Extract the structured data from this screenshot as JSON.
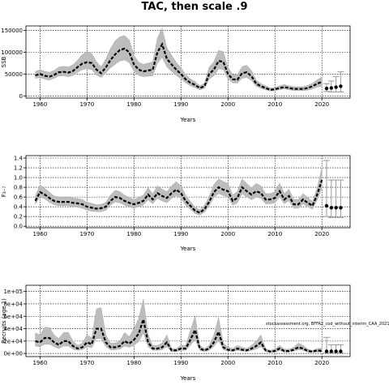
{
  "title": "TAC, then scale .9",
  "watermark": "stockassessment.org, BFFA2_cod_without_interim_CAA_2021",
  "colors": {
    "line": "#000000",
    "band": "#bdbdbd",
    "band_edge": "#9a9a9a",
    "forecast": "#9a9a9a"
  },
  "chart_data": [
    {
      "type": "line",
      "title": "",
      "xlabel": "Years",
      "ylabel": "SSB",
      "xlim": [
        1957,
        2026
      ],
      "ylim": [
        -5000,
        160000
      ],
      "grid": true,
      "x_ticks": [
        1960,
        1970,
        1980,
        1990,
        2000,
        2010,
        2020
      ],
      "y_ticks": [
        0,
        50000,
        100000,
        150000
      ],
      "y_tick_labels": [
        "0",
        "50000",
        "100000",
        "150000"
      ],
      "years": [
        1959,
        1960,
        1961,
        1962,
        1963,
        1964,
        1965,
        1966,
        1967,
        1968,
        1969,
        1970,
        1971,
        1972,
        1973,
        1974,
        1975,
        1976,
        1977,
        1978,
        1979,
        1980,
        1981,
        1982,
        1983,
        1984,
        1985,
        1986,
        1987,
        1988,
        1989,
        1990,
        1991,
        1992,
        1993,
        1994,
        1995,
        1996,
        1997,
        1998,
        1999,
        2000,
        2001,
        2002,
        2003,
        2004,
        2005,
        2006,
        2007,
        2008,
        2009,
        2010,
        2011,
        2012,
        2013,
        2014,
        2015,
        2016,
        2017,
        2018,
        2019,
        2020
      ],
      "estimate": [
        47000,
        50000,
        46000,
        44000,
        48000,
        54000,
        55000,
        53000,
        57000,
        66000,
        74000,
        77000,
        75000,
        60000,
        52000,
        65000,
        82000,
        95000,
        105000,
        108000,
        100000,
        72000,
        60000,
        56000,
        58000,
        60000,
        100000,
        118000,
        85000,
        72000,
        60000,
        50000,
        38000,
        30000,
        25000,
        18000,
        22000,
        50000,
        60000,
        80000,
        78000,
        50000,
        38000,
        37000,
        52000,
        54000,
        45000,
        28000,
        22000,
        18000,
        14000,
        15000,
        18000,
        20000,
        18000,
        16000,
        16000,
        16000,
        18000,
        22000,
        28000,
        32000
      ],
      "lower": [
        40000,
        42000,
        38000,
        36000,
        40000,
        46000,
        46000,
        44000,
        47000,
        54000,
        60000,
        62000,
        60000,
        48000,
        42000,
        52000,
        64000,
        72000,
        80000,
        82000,
        76000,
        56000,
        47000,
        44000,
        45000,
        46000,
        75000,
        88000,
        66000,
        56000,
        47000,
        39000,
        30000,
        23000,
        19000,
        14000,
        17000,
        38000,
        46000,
        62000,
        60000,
        39000,
        30000,
        29000,
        40000,
        42000,
        35000,
        22000,
        17000,
        14000,
        11000,
        12000,
        14000,
        16000,
        14000,
        12000,
        12000,
        12000,
        13000,
        16000,
        20000,
        22000
      ],
      "upper": [
        56000,
        60000,
        56000,
        54000,
        58000,
        66000,
        68000,
        66000,
        71000,
        82000,
        95000,
        100000,
        97000,
        78000,
        67000,
        84000,
        108000,
        126000,
        135000,
        138000,
        128000,
        93000,
        77000,
        72000,
        75000,
        78000,
        133000,
        155000,
        110000,
        93000,
        77000,
        64000,
        49000,
        39000,
        33000,
        23000,
        29000,
        66000,
        78000,
        104000,
        101000,
        65000,
        49000,
        48000,
        67000,
        70000,
        58000,
        36000,
        28000,
        23000,
        18000,
        19000,
        23000,
        26000,
        23000,
        21000,
        21000,
        21000,
        24000,
        29000,
        37000,
        43000
      ],
      "forecast": {
        "years": [
          2021,
          2022,
          2023,
          2024
        ],
        "median": [
          17000,
          18000,
          20000,
          22000
        ],
        "lower": [
          10000,
          9000,
          9000,
          9000
        ],
        "upper": [
          28000,
          34000,
          44000,
          55000
        ]
      }
    },
    {
      "type": "line",
      "title": "",
      "xlabel": "Years",
      "ylabel": "F₃₋₇",
      "xlim": [
        1957,
        2026
      ],
      "ylim": [
        -0.03,
        1.45
      ],
      "grid": true,
      "x_ticks": [
        1960,
        1970,
        1980,
        1990,
        2000,
        2010,
        2020
      ],
      "y_ticks": [
        0,
        0.2,
        0.4,
        0.6,
        0.8,
        1.0,
        1.2,
        1.4
      ],
      "y_tick_labels": [
        "0.0",
        "0.2",
        "0.4",
        "0.6",
        "0.8",
        "1.0",
        "1.2",
        "1.4"
      ],
      "years": [
        1959,
        1960,
        1961,
        1962,
        1963,
        1964,
        1965,
        1966,
        1967,
        1968,
        1969,
        1970,
        1971,
        1972,
        1973,
        1974,
        1975,
        1976,
        1977,
        1978,
        1979,
        1980,
        1981,
        1982,
        1983,
        1984,
        1985,
        1986,
        1987,
        1988,
        1989,
        1990,
        1991,
        1992,
        1993,
        1994,
        1995,
        1996,
        1997,
        1998,
        1999,
        2000,
        2001,
        2002,
        2003,
        2004,
        2005,
        2006,
        2007,
        2008,
        2009,
        2010,
        2011,
        2012,
        2013,
        2014,
        2015,
        2016,
        2017,
        2018,
        2019,
        2020
      ],
      "estimate": [
        0.52,
        0.7,
        0.65,
        0.58,
        0.52,
        0.5,
        0.5,
        0.5,
        0.48,
        0.47,
        0.45,
        0.4,
        0.38,
        0.36,
        0.37,
        0.4,
        0.52,
        0.6,
        0.58,
        0.52,
        0.48,
        0.45,
        0.48,
        0.52,
        0.65,
        0.55,
        0.68,
        0.62,
        0.58,
        0.68,
        0.75,
        0.68,
        0.52,
        0.42,
        0.32,
        0.28,
        0.35,
        0.5,
        0.7,
        0.8,
        0.75,
        0.72,
        0.52,
        0.58,
        0.8,
        0.72,
        0.65,
        0.72,
        0.68,
        0.55,
        0.55,
        0.58,
        0.72,
        0.55,
        0.62,
        0.45,
        0.45,
        0.55,
        0.48,
        0.42,
        0.65,
        0.95
      ],
      "lower": [
        0.45,
        0.6,
        0.56,
        0.49,
        0.44,
        0.42,
        0.42,
        0.42,
        0.4,
        0.39,
        0.37,
        0.33,
        0.31,
        0.3,
        0.3,
        0.33,
        0.43,
        0.5,
        0.48,
        0.43,
        0.4,
        0.37,
        0.4,
        0.43,
        0.54,
        0.46,
        0.57,
        0.52,
        0.48,
        0.57,
        0.63,
        0.57,
        0.43,
        0.35,
        0.26,
        0.23,
        0.29,
        0.42,
        0.59,
        0.67,
        0.63,
        0.6,
        0.43,
        0.48,
        0.67,
        0.6,
        0.54,
        0.6,
        0.57,
        0.46,
        0.46,
        0.48,
        0.6,
        0.46,
        0.52,
        0.37,
        0.37,
        0.46,
        0.4,
        0.35,
        0.54,
        0.78
      ],
      "upper": [
        0.62,
        0.85,
        0.78,
        0.7,
        0.62,
        0.6,
        0.6,
        0.6,
        0.58,
        0.57,
        0.55,
        0.49,
        0.47,
        0.44,
        0.45,
        0.49,
        0.64,
        0.74,
        0.71,
        0.64,
        0.59,
        0.55,
        0.59,
        0.64,
        0.79,
        0.67,
        0.83,
        0.76,
        0.71,
        0.83,
        0.92,
        0.83,
        0.64,
        0.51,
        0.39,
        0.34,
        0.43,
        0.61,
        0.86,
        0.97,
        0.92,
        0.88,
        0.64,
        0.71,
        0.97,
        0.88,
        0.79,
        0.88,
        0.83,
        0.67,
        0.67,
        0.71,
        0.88,
        0.67,
        0.76,
        0.55,
        0.55,
        0.67,
        0.59,
        0.51,
        0.79,
        1.2
      ],
      "forecast": {
        "years": [
          2021,
          2022,
          2023,
          2024
        ],
        "median": [
          0.42,
          0.38,
          0.38,
          0.38
        ],
        "lower": [
          0.2,
          0.18,
          0.18,
          0.18
        ],
        "upper": [
          1.35,
          0.95,
          0.95,
          0.95
        ]
      }
    },
    {
      "type": "line",
      "title": "",
      "xlabel": "Years",
      "ylabel": "Recruits (age 1)",
      "xlim": [
        1957,
        2026
      ],
      "ylim": [
        -5000,
        110000
      ],
      "grid": true,
      "x_ticks": [
        1960,
        1970,
        1980,
        1990,
        2000,
        2010,
        2020
      ],
      "y_ticks": [
        0,
        20000,
        40000,
        60000,
        80000,
        100000
      ],
      "y_tick_labels": [
        "0e+00",
        "2e+04",
        "4e+04",
        "6e+04",
        "8e+04",
        "1e+05"
      ],
      "years": [
        1959,
        1960,
        1961,
        1962,
        1963,
        1964,
        1965,
        1966,
        1967,
        1968,
        1969,
        1970,
        1971,
        1972,
        1973,
        1974,
        1975,
        1976,
        1977,
        1978,
        1979,
        1980,
        1981,
        1982,
        1983,
        1984,
        1985,
        1986,
        1987,
        1988,
        1989,
        1990,
        1991,
        1992,
        1993,
        1994,
        1995,
        1996,
        1997,
        1998,
        1999,
        2000,
        2001,
        2002,
        2003,
        2004,
        2005,
        2006,
        2007,
        2008,
        2009,
        2010,
        2011,
        2012,
        2013,
        2014,
        2015,
        2016,
        2017,
        2018,
        2019,
        2020
      ],
      "estimate": [
        20000,
        18000,
        25000,
        25000,
        18000,
        14000,
        20000,
        20000,
        12000,
        8000,
        10000,
        18000,
        15000,
        40000,
        40000,
        18000,
        10000,
        10000,
        12000,
        20000,
        16000,
        22000,
        32000,
        55000,
        18000,
        8000,
        8000,
        10000,
        18000,
        5000,
        5000,
        8000,
        8000,
        22000,
        38000,
        8000,
        5000,
        8000,
        18000,
        35000,
        10000,
        6000,
        5000,
        8000,
        6000,
        5000,
        8000,
        12000,
        18000,
        5000,
        3000,
        4000,
        8000,
        4000,
        4000,
        6000,
        10000,
        8000,
        4000,
        3000,
        5000,
        4000
      ],
      "lower": [
        12000,
        11000,
        15000,
        15000,
        11000,
        8000,
        12000,
        12000,
        7000,
        5000,
        6000,
        11000,
        9000,
        24000,
        24000,
        11000,
        6000,
        6000,
        7000,
        12000,
        10000,
        13000,
        19000,
        33000,
        11000,
        5000,
        5000,
        6000,
        11000,
        3000,
        3000,
        5000,
        5000,
        13000,
        23000,
        5000,
        3000,
        5000,
        11000,
        21000,
        6000,
        4000,
        3000,
        5000,
        4000,
        3000,
        5000,
        7000,
        11000,
        3000,
        2000,
        2000,
        5000,
        2000,
        2000,
        4000,
        6000,
        5000,
        2000,
        2000,
        2000,
        2000
      ],
      "upper": [
        33000,
        30000,
        42000,
        42000,
        30000,
        24000,
        34000,
        34000,
        20000,
        13000,
        17000,
        30000,
        25000,
        72000,
        74000,
        30000,
        17000,
        17000,
        20000,
        34000,
        27000,
        40000,
        56000,
        88000,
        31000,
        13000,
        13000,
        17000,
        30000,
        8000,
        8000,
        13000,
        13000,
        37000,
        60000,
        13000,
        8000,
        13000,
        30000,
        58000,
        17000,
        10000,
        8000,
        13000,
        10000,
        8000,
        13000,
        20000,
        30000,
        8000,
        5000,
        7000,
        13000,
        7000,
        7000,
        10000,
        17000,
        13000,
        7000,
        5000,
        8000,
        9000
      ],
      "forecast": {
        "years": [
          2021,
          2022,
          2023,
          2024
        ],
        "median": [
          3500,
          3500,
          3500,
          3500
        ],
        "lower": [
          1000,
          1000,
          1000,
          1000
        ],
        "upper": [
          26000,
          14000,
          14000,
          14000
        ]
      }
    }
  ]
}
